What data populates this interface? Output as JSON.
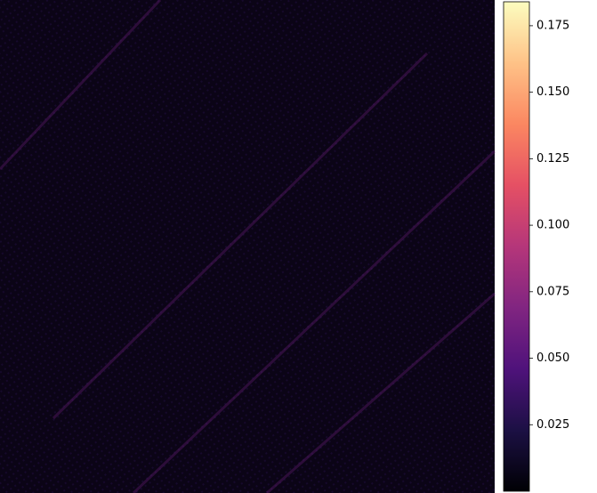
{
  "chart_data": {
    "type": "heatmap",
    "colormap": "magma",
    "clim": [
      0,
      0.184
    ],
    "colorbar_ticks": [
      0.025,
      {
        "value": 0.05,
        "label": "0.050"
      },
      0.075,
      {
        "value": 0.1,
        "label": "0.100"
      },
      0.125,
      {
        "value": 0.15,
        "label": "0.150"
      },
      0.175
    ]
  }
}
